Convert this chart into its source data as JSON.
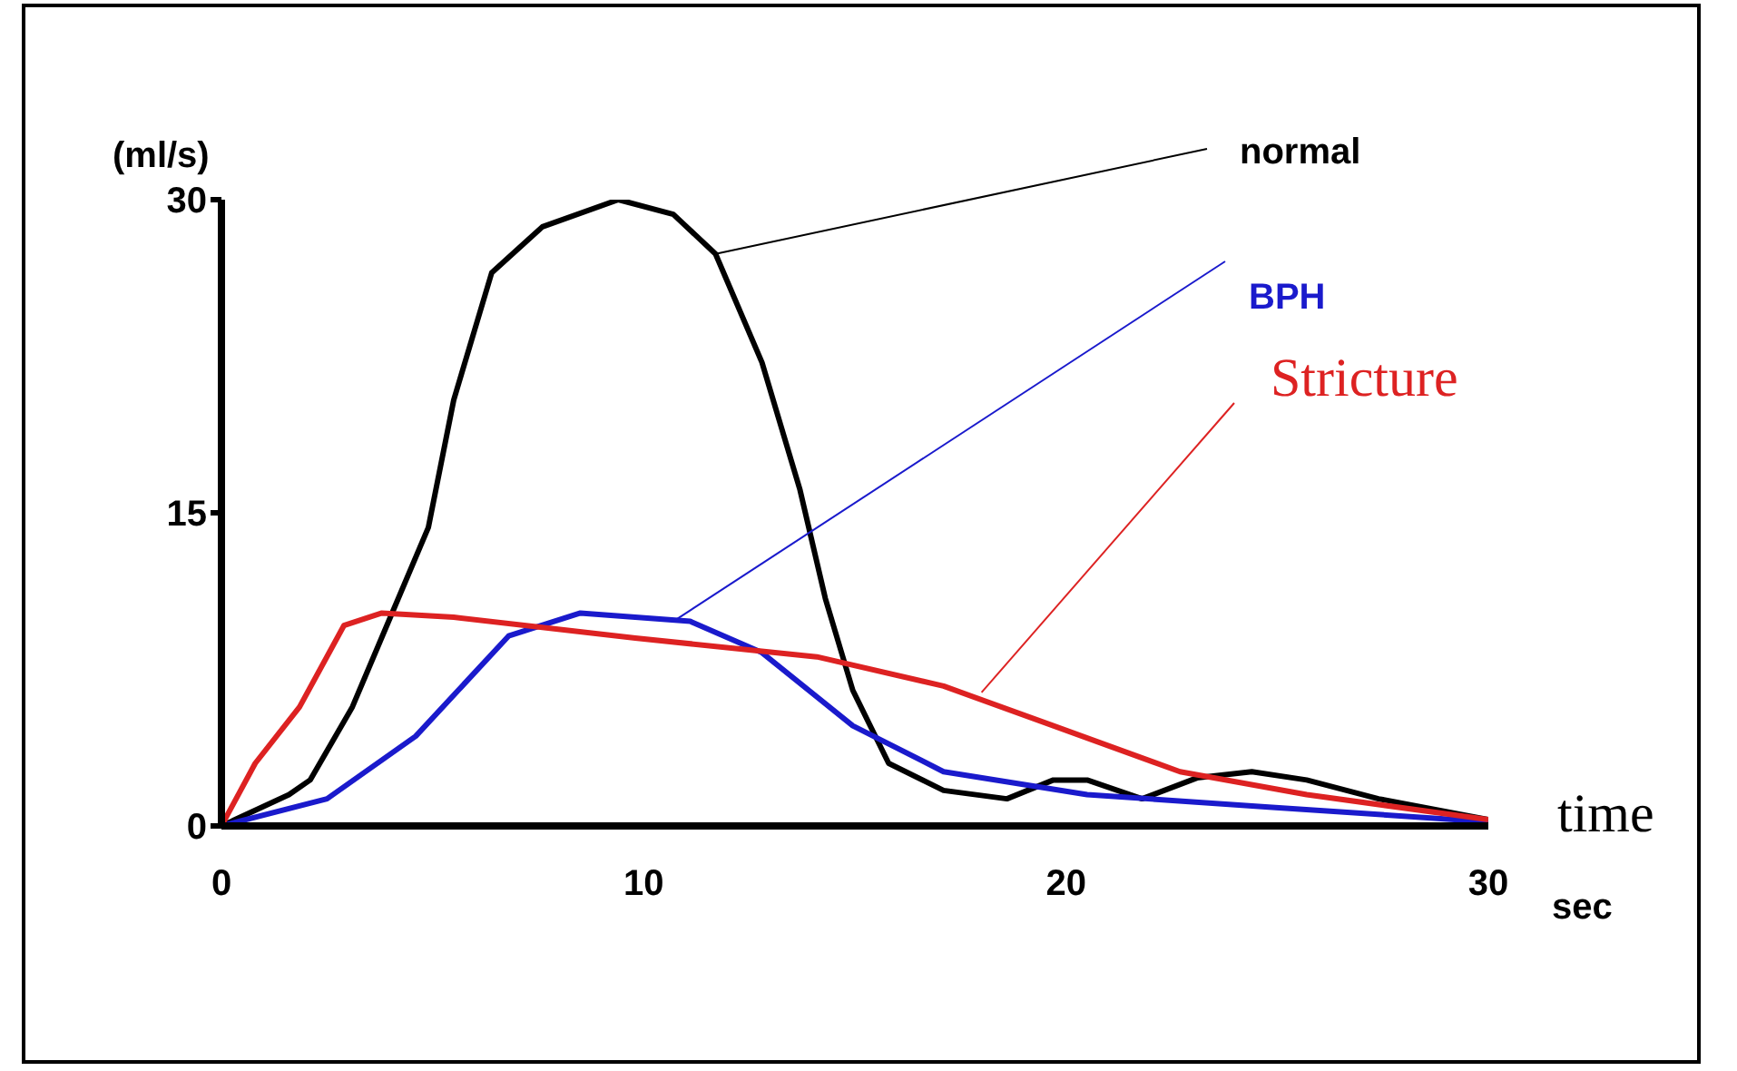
{
  "chart_data": {
    "type": "line",
    "xlabel": "sec",
    "ylabel": "(ml/s)",
    "xlim": [
      0,
      30
    ],
    "ylim": [
      0,
      30
    ],
    "xticks": [
      0,
      10,
      20,
      30
    ],
    "yticks": [
      0,
      15,
      30
    ],
    "grid": false,
    "legend": false,
    "marker": "none",
    "line_style": "solid",
    "series": [
      {
        "color": "#000000",
        "x": [
          0,
          1.6,
          2.1,
          3.1,
          4,
          4.9,
          5.5,
          6.4,
          7.6,
          9.4,
          10.7,
          11.7,
          12.8,
          13.7,
          14.3,
          14.95,
          15.8,
          17.1,
          18.6,
          19.7,
          20.5,
          21.8,
          23.1,
          24.4,
          25.7,
          27.4,
          30
        ],
        "values": [
          0,
          1.5,
          2.2,
          5.7,
          10,
          14.3,
          20.4,
          26.5,
          28.7,
          30,
          29.3,
          27.4,
          22.2,
          16.1,
          10.9,
          6.5,
          3,
          1.7,
          1.3,
          2.2,
          2.2,
          1.3,
          2.3,
          2.6,
          2.2,
          1.3,
          0.3
        ]
      },
      {
        "color": "#1a1acc",
        "x": [
          0,
          2.5,
          4.6,
          6.8,
          8.5,
          11.1,
          12.8,
          14.95,
          17.1,
          20.5,
          24.8,
          30
        ],
        "values": [
          0,
          1.3,
          4.3,
          9.1,
          10.2,
          9.8,
          8.3,
          4.8,
          2.6,
          1.5,
          0.9,
          0.2
        ]
      },
      {
        "color": "#dd2222",
        "x": [
          0,
          0.8,
          1.85,
          2.9,
          3.8,
          5.5,
          9.8,
          14.1,
          17.1,
          19.7,
          22.7,
          25.7,
          30
        ],
        "values": [
          0,
          3,
          5.7,
          9.6,
          10.2,
          10,
          9,
          8.1,
          6.7,
          4.8,
          2.6,
          1.5,
          0.3
        ]
      }
    ],
    "annotations": [
      {
        "text": "normal",
        "x": 11.7,
        "y": 27.4
      },
      {
        "text": "BPH",
        "x": 10.7,
        "y": 9.8
      },
      {
        "text": "Stricture",
        "x": 18,
        "y": 6.4
      },
      "time"
    ]
  }
}
